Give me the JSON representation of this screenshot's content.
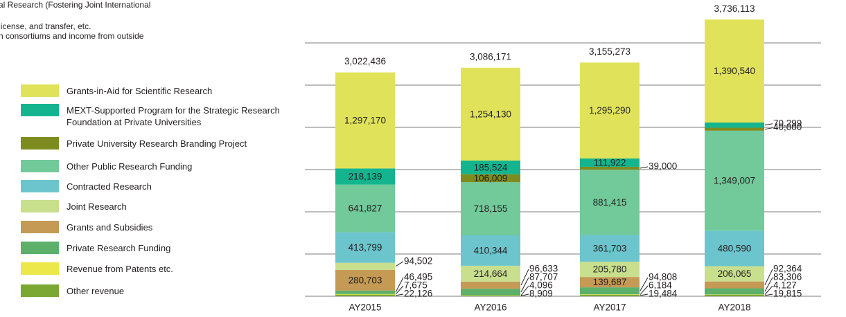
{
  "notes": [
    "al Research (Fostering Joint International",
    " license, and transfer, etc.",
    "h consortiums and income from outside"
  ],
  "chart_data": {
    "type": "stacked_bar",
    "categories": [
      "AY2015",
      "AY2016",
      "AY2017",
      "AY2018"
    ],
    "ylim": [
      0,
      4000000
    ],
    "totals": [
      3022436,
      3086171,
      3155273,
      3736113
    ],
    "total_labels": [
      "3,022,436",
      "3,086,171",
      "3,155,273",
      "3,736,113"
    ],
    "series": [
      {
        "name": "Other revenue",
        "color": "#7aa832",
        "values": [
          22126,
          8909,
          19484,
          19815
        ],
        "value_labels": [
          "22,126",
          "8,909",
          "19,484",
          "19,815"
        ]
      },
      {
        "name": "Revenue from Patents etc.",
        "color": "#ece84a",
        "values": [
          7675,
          4096,
          6184,
          4127
        ],
        "value_labels": [
          "7,675",
          "4,096",
          "6,184",
          "4,127"
        ]
      },
      {
        "name": "Private Research Funding",
        "color": "#5cb06a",
        "values": [
          46495,
          87707,
          94808,
          83306
        ],
        "value_labels": [
          "46,495",
          "87,707",
          "94,808",
          "83,306"
        ]
      },
      {
        "name": "Grants and Subsidies",
        "color": "#c49a55",
        "values": [
          280703,
          96633,
          139687,
          92364
        ],
        "value_labels": [
          "280,703",
          "96,633",
          "139,687",
          "92,364"
        ]
      },
      {
        "name": "Joint Research",
        "color": "#c8df8e",
        "values": [
          94502,
          214664,
          205780,
          206065
        ],
        "value_labels": [
          "94,502",
          "214,664",
          "205,780",
          "206,065"
        ]
      },
      {
        "name": "Contracted Research",
        "color": "#6cc5cc",
        "values": [
          413799,
          410344,
          361703,
          480590
        ],
        "value_labels": [
          "413,799",
          "410,344",
          "361,703",
          "480,590"
        ]
      },
      {
        "name": "Other Public Research Funding",
        "color": "#72c99a",
        "values": [
          641827,
          718155,
          881415,
          1349007
        ],
        "value_labels": [
          "641,827",
          "718,155",
          "881,415",
          "1,349,007"
        ]
      },
      {
        "name": "Private University Research Branding Project",
        "color": "#7e8c1f",
        "values": [
          null,
          106009,
          39000,
          40000
        ],
        "value_labels": [
          null,
          "106,009",
          "39,000",
          "40,000"
        ]
      },
      {
        "name": "MEXT-Supported Program for the Strategic Research Foundation at Private Universities",
        "color": "#14b58e",
        "values": [
          218139,
          185524,
          111922,
          70299
        ],
        "value_labels": [
          "218,139",
          "185,524",
          "111,922",
          "70,299"
        ]
      },
      {
        "name": "Grants-in-Aid for Scientific Research",
        "color": "#e0e35a",
        "values": [
          1297170,
          1254130,
          1295290,
          1390540
        ],
        "value_labels": [
          "1,297,170",
          "1,254,130",
          "1,295,290",
          "1,390,540"
        ]
      }
    ]
  }
}
